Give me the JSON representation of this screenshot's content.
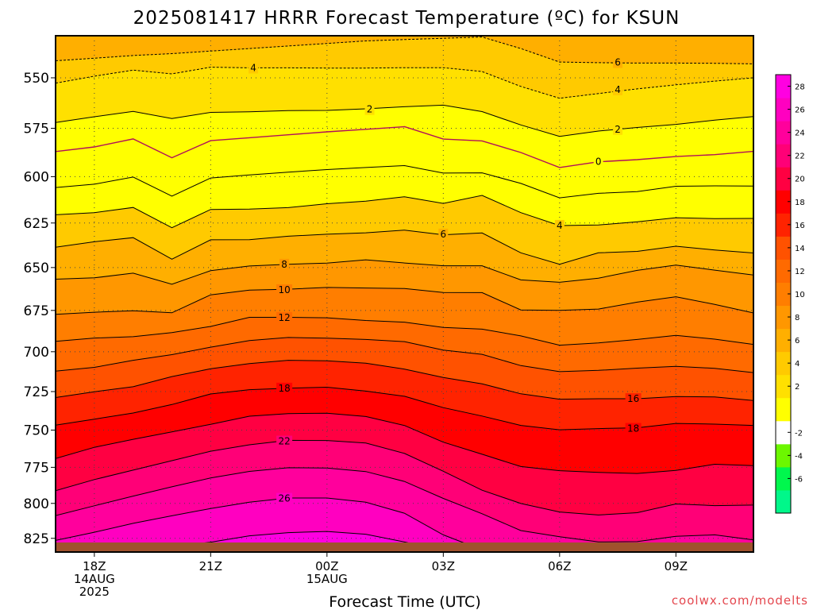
{
  "chart_data": {
    "type": "filled-contour",
    "title": "2025081417 HRRR Forecast Temperature (ºC) for KSUN",
    "xlabel": "Forecast Time (UTC)",
    "ylabel": "",
    "credit": "coolwx.com/modelts",
    "x_ticks": [
      {
        "x": 0,
        "lines": [
          "18Z",
          "14AUG",
          "2025"
        ]
      },
      {
        "x": 3,
        "lines": [
          "21Z"
        ]
      },
      {
        "x": 6,
        "lines": [
          "00Z",
          "15AUG"
        ]
      },
      {
        "x": 9,
        "lines": [
          "03Z"
        ]
      },
      {
        "x": 12,
        "lines": [
          "06Z"
        ]
      },
      {
        "x": 15,
        "lines": [
          "09Z"
        ]
      }
    ],
    "xlim": [
      -1,
      17
    ],
    "y_ticks": [
      550,
      575,
      600,
      625,
      650,
      675,
      700,
      725,
      750,
      775,
      800,
      825
    ],
    "ylim": [
      530,
      835
    ],
    "y_scale": "log-pressure (inverted)",
    "x": [
      -1,
      0,
      1,
      2,
      3,
      4,
      5,
      6,
      7,
      8,
      9,
      10,
      11,
      12,
      13,
      14,
      15,
      16,
      17
    ],
    "contours": [
      {
        "level": 6,
        "p": [
          541.8,
          540.6,
          539.3,
          538.4,
          537.2,
          536.0,
          534.8,
          533.6,
          532.4,
          531.8,
          531.2,
          530.6,
          536.0,
          542.4,
          542.7,
          542.9,
          542.9,
          543.0,
          543.3
        ]
      },
      {
        "level": 4,
        "p": [
          552.6,
          549.2,
          546.3,
          548.1,
          544.9,
          545.2,
          545.2,
          545.3,
          545.3,
          545.1,
          545.1,
          547.0,
          554.2,
          560.0,
          557.7,
          555.4,
          553.4,
          551.6,
          550.0
        ]
      },
      {
        "level": 2,
        "p": [
          572.1,
          569.2,
          566.5,
          570.1,
          567.0,
          566.7,
          566.1,
          566.0,
          565.2,
          564.2,
          563.4,
          566.6,
          573.3,
          579.1,
          576.4,
          574.6,
          573.0,
          570.9,
          569.1
        ]
      },
      {
        "level": 0,
        "p": [
          586.9,
          584.5,
          580.4,
          590.1,
          581.3,
          579.8,
          578.3,
          576.8,
          575.5,
          574.2,
          580.5,
          581.4,
          587.4,
          595.2,
          592.2,
          591.1,
          589.5,
          588.5,
          586.8
        ]
      },
      {
        "level": 2,
        "p": [
          605.8,
          604.0,
          600.2,
          610.4,
          600.7,
          599.1,
          597.6,
          596.3,
          595.2,
          594.2,
          598.1,
          598.0,
          603.6,
          611.3,
          608.9,
          608.0,
          605.1,
          604.9,
          605.0
        ]
      },
      {
        "level": 4,
        "p": [
          620.5,
          619.3,
          616.5,
          627.6,
          617.6,
          617.4,
          616.6,
          614.5,
          613.1,
          610.7,
          614.3,
          610.0,
          619.3,
          626.4,
          626.1,
          624.3,
          622.1,
          622.6,
          622.5
        ]
      },
      {
        "level": 6,
        "p": [
          638.5,
          635.4,
          633.1,
          645.2,
          634.3,
          634.2,
          632.3,
          631.2,
          630.4,
          628.9,
          631.5,
          630.5,
          641.6,
          648.1,
          641.6,
          640.8,
          637.9,
          640.0,
          641.7
        ]
      },
      {
        "level": 8,
        "p": [
          656.7,
          655.9,
          653.2,
          659.6,
          651.8,
          649.1,
          648.1,
          647.5,
          645.6,
          647.4,
          649.0,
          649.0,
          657.1,
          658.5,
          656.1,
          651.6,
          648.6,
          651.5,
          654.3
        ]
      },
      {
        "level": 10,
        "p": [
          677.3,
          676.1,
          675.2,
          676.4,
          665.8,
          663.0,
          662.5,
          661.5,
          661.8,
          662.1,
          664.4,
          664.5,
          674.7,
          675.0,
          674.2,
          670.1,
          666.9,
          671.4,
          676.5
        ]
      },
      {
        "level": 12,
        "p": [
          693.6,
          691.6,
          690.8,
          688.3,
          684.6,
          679.1,
          679.1,
          679.4,
          681.0,
          682.0,
          685.2,
          686.2,
          690.3,
          696.0,
          694.6,
          692.5,
          690.0,
          692.3,
          695.5
        ]
      },
      {
        "level": 14,
        "p": [
          712.1,
          709.7,
          705.3,
          701.8,
          697.2,
          693.1,
          691.3,
          691.7,
          692.5,
          693.8,
          699.0,
          701.6,
          708.6,
          712.4,
          711.6,
          710.2,
          709.1,
          710.3,
          713.0
        ]
      },
      {
        "level": 16,
        "p": [
          728.8,
          725.1,
          721.9,
          715.5,
          710.6,
          707.3,
          705.3,
          705.6,
          707.1,
          710.8,
          716.1,
          720.1,
          726.4,
          729.9,
          729.6,
          729.6,
          728.2,
          728.4,
          730.7
        ]
      },
      {
        "level": 18,
        "p": [
          746.7,
          742.8,
          738.8,
          733.3,
          726.5,
          723.8,
          722.8,
          722.2,
          724.7,
          728.0,
          735.3,
          740.8,
          746.9,
          749.8,
          749.0,
          748.5,
          745.6,
          746.1,
          746.9
        ]
      },
      {
        "level": 20,
        "p": [
          769.0,
          761.5,
          756.1,
          751.2,
          746.2,
          740.9,
          739.2,
          738.9,
          741.1,
          747.0,
          758.0,
          766.1,
          774.5,
          777.3,
          778.5,
          779.2,
          777.1,
          772.9,
          773.8
        ]
      },
      {
        "level": 22,
        "p": [
          791.1,
          783.4,
          776.9,
          770.5,
          764.1,
          759.8,
          756.8,
          756.9,
          758.6,
          765.6,
          777.7,
          790.8,
          800.1,
          806.1,
          808.2,
          806.6,
          800.4,
          801.6,
          801.2
        ]
      },
      {
        "level": 24,
        "p": [
          808.7,
          801.7,
          794.9,
          788.4,
          782.3,
          777.8,
          775.3,
          775.5,
          777.9,
          784.7,
          796.5,
          807.3,
          819.4,
          823.8,
          827.6,
          827.4,
          823.6,
          822.5,
          826.1
        ]
      },
      {
        "level": 26,
        "p": [
          826.5,
          820.6,
          814.2,
          808.8,
          803.6,
          799.2,
          796.2,
          796.2,
          799.2,
          807.0,
          822.5,
          833.5,
          834.0,
          834.0,
          834.0,
          834.0,
          834.0,
          834.0,
          834.0
        ]
      },
      {
        "level": 28,
        "p": [
          835.0,
          835.0,
          834.0,
          830.9,
          827.8,
          823.2,
          820.9,
          820.0,
          822.0,
          827.7,
          834.0,
          835.0,
          835.0,
          835.0,
          835.0,
          835.0,
          835.0,
          835.0,
          835.0
        ]
      }
    ],
    "contour_labels": [
      {
        "text": "6",
        "x": 13.5,
        "p": 542.6
      },
      {
        "text": "4",
        "x": 4.1,
        "p": 545.2
      },
      {
        "text": "4",
        "x": 13.5,
        "p": 555.8
      },
      {
        "text": "2",
        "x": 7.1,
        "p": 565.5
      },
      {
        "text": "2",
        "x": 13.5,
        "p": 575.5
      },
      {
        "text": "0",
        "x": 13.0,
        "p": 592.2
      },
      {
        "text": "6",
        "x": 9.0,
        "p": 631.2
      },
      {
        "text": "4",
        "x": 12.0,
        "p": 626.4
      },
      {
        "text": "8",
        "x": 4.9,
        "p": 648.2
      },
      {
        "text": "10",
        "x": 4.9,
        "p": 662.9
      },
      {
        "text": "12",
        "x": 4.9,
        "p": 679.3
      },
      {
        "text": "16",
        "x": 13.9,
        "p": 729.6
      },
      {
        "text": "18",
        "x": 4.9,
        "p": 722.9
      },
      {
        "text": "18",
        "x": 13.9,
        "p": 749.0
      },
      {
        "text": "22",
        "x": 4.9,
        "p": 757.4
      },
      {
        "text": "26",
        "x": 4.9,
        "p": 796.6
      }
    ],
    "dashed_levels": [
      6,
      4
    ],
    "colorbar": {
      "levels": [
        -8,
        -6,
        -4,
        -2,
        0,
        2,
        4,
        6,
        8,
        10,
        12,
        14,
        16,
        18,
        20,
        22,
        24,
        26,
        28,
        30
      ],
      "tick_labels": [
        "-6",
        "-4",
        "-2",
        "2",
        "4",
        "6",
        "8",
        "10",
        "12",
        "14",
        "16",
        "18",
        "20",
        "22",
        "24",
        "26",
        "28"
      ],
      "tick_values": [
        -6,
        -4,
        -2,
        2,
        4,
        6,
        8,
        10,
        12,
        14,
        16,
        18,
        20,
        22,
        24,
        26,
        28
      ],
      "colors": [
        "#00f78a",
        "#00f74d",
        "#6cf700",
        "#ffffff",
        "#ffff00",
        "#ffe000",
        "#ffca00",
        "#ffaf00",
        "#ff9700",
        "#ff7e00",
        "#ff6a00",
        "#ff5200",
        "#ff2300",
        "#ff0000",
        "#ff0042",
        "#ff0077",
        "#ff009c",
        "#ff00c0",
        "#ff00e1"
      ]
    },
    "ground_color": "#a0522d",
    "grid": true
  }
}
